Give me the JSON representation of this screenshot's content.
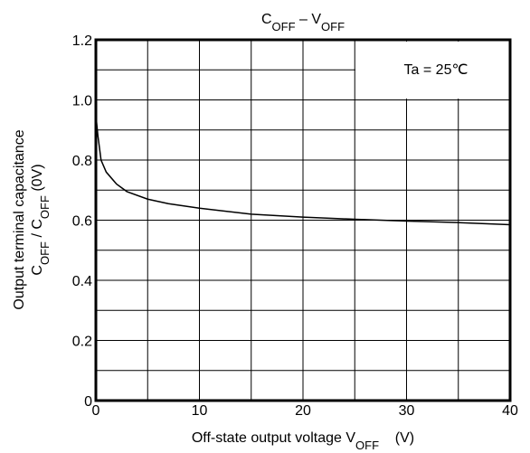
{
  "chart_data": {
    "type": "line",
    "title": [
      {
        "text": "C"
      },
      {
        "sub": "OFF"
      },
      {
        "text": " – V"
      },
      {
        "sub": "OFF"
      }
    ],
    "x_label": [
      {
        "text": "Off-state output voltage V"
      },
      {
        "sub": "OFF"
      },
      {
        "text": "    (V)"
      }
    ],
    "y_label": [
      [
        {
          "text": "Output terminal capacitance"
        }
      ],
      [
        {
          "text": "C"
        },
        {
          "sub": "OFF"
        },
        {
          "text": " / C"
        },
        {
          "sub": "OFF"
        },
        {
          "text": " (0V)"
        }
      ]
    ],
    "annotation": "Ta = 25℃",
    "x": [
      0,
      0.2,
      0.5,
      1,
      2,
      3,
      5,
      7,
      10,
      15,
      20,
      25,
      30,
      35,
      40
    ],
    "series": [
      {
        "name": "COFF / COFF(0V)",
        "color": "#000000",
        "values": [
          0.95,
          0.88,
          0.8,
          0.76,
          0.72,
          0.695,
          0.67,
          0.655,
          0.64,
          0.62,
          0.61,
          0.603,
          0.597,
          0.592,
          0.585
        ]
      }
    ],
    "xlim": [
      0,
      40
    ],
    "xticks": [
      0,
      10,
      20,
      30,
      40
    ],
    "ylim": [
      0,
      1.2
    ],
    "yticks": [
      0,
      0.2,
      0.4,
      0.6,
      0.8,
      {
        "value": 1,
        "label": "1.0"
      },
      1.2
    ],
    "xgrid": [
      5,
      10,
      15,
      20,
      25,
      30,
      35
    ],
    "ygrid": [
      0.1,
      0.2,
      0.3,
      0.4,
      0.5,
      0.6,
      0.7,
      0.8,
      0.9,
      1,
      1.1
    ],
    "grid": true
  }
}
